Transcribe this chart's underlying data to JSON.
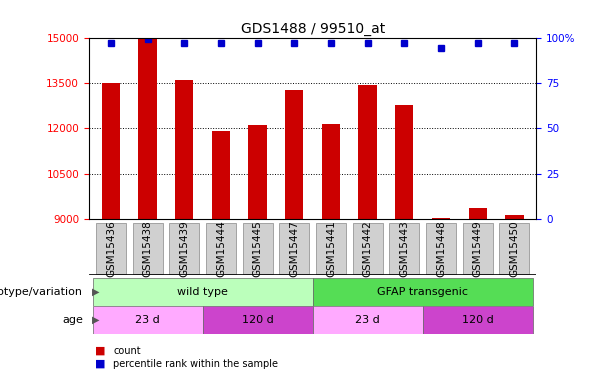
{
  "title": "GDS1488 / 99510_at",
  "samples": [
    "GSM15436",
    "GSM15438",
    "GSM15439",
    "GSM15444",
    "GSM15445",
    "GSM15447",
    "GSM15441",
    "GSM15442",
    "GSM15443",
    "GSM15448",
    "GSM15449",
    "GSM15450"
  ],
  "counts": [
    13490,
    14950,
    13610,
    11930,
    12100,
    13280,
    12150,
    13430,
    12780,
    9030,
    9380,
    9150
  ],
  "percentiles": [
    97,
    99,
    97,
    97,
    97,
    97,
    97,
    97,
    97,
    94,
    97,
    97
  ],
  "ylim_left": [
    9000,
    15000
  ],
  "yticks_left": [
    9000,
    10500,
    12000,
    13500,
    15000
  ],
  "ylim_right": [
    0,
    100
  ],
  "yticks_right": [
    0,
    25,
    50,
    75,
    100
  ],
  "yticklabels_right": [
    "0",
    "25",
    "50",
    "75",
    "100%"
  ],
  "bar_color": "#cc0000",
  "dot_color": "#0000cc",
  "bar_width": 0.5,
  "genotype_groups": [
    {
      "label": "wild type",
      "start": 0,
      "end": 5,
      "color": "#bbffbb"
    },
    {
      "label": "GFAP transgenic",
      "start": 6,
      "end": 11,
      "color": "#55dd55"
    }
  ],
  "age_groups": [
    {
      "label": "23 d",
      "start": 0,
      "end": 2,
      "color": "#ffaaff"
    },
    {
      "label": "120 d",
      "start": 3,
      "end": 5,
      "color": "#cc44cc"
    },
    {
      "label": "23 d",
      "start": 6,
      "end": 8,
      "color": "#ffaaff"
    },
    {
      "label": "120 d",
      "start": 9,
      "end": 11,
      "color": "#cc44cc"
    }
  ],
  "legend_count_label": "count",
  "legend_pct_label": "percentile rank within the sample",
  "genotype_label": "genotype/variation",
  "age_label": "age",
  "title_fontsize": 10,
  "tick_fontsize": 7.5,
  "label_fontsize": 8,
  "annot_fontsize": 8
}
